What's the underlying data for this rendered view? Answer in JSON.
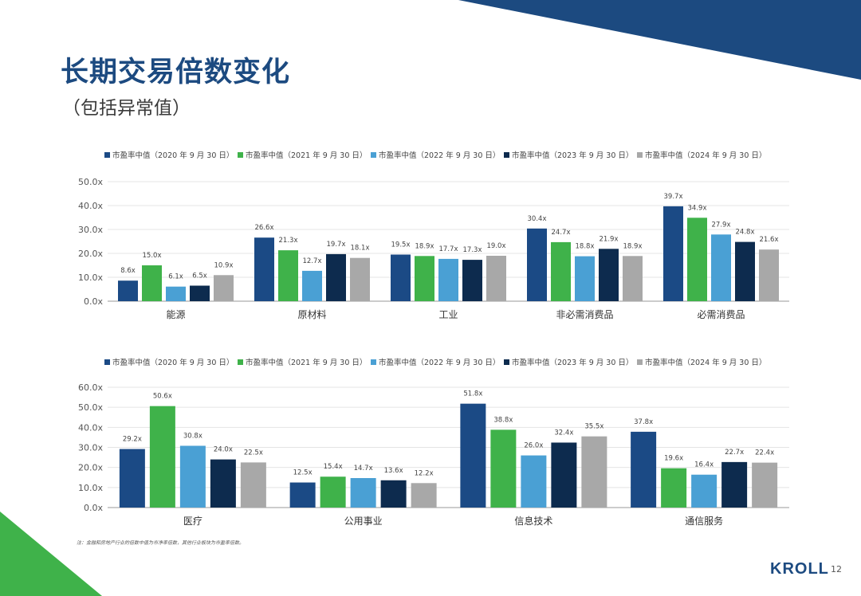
{
  "title": "长期交易倍数变化",
  "subtitle": "（包括异常值）",
  "footnote": "注：金融和房地产行业的倍数中值为市净率倍数，其他行业板块为市盈率倍数。",
  "logo": "KROLL",
  "page_number": "12",
  "colors": {
    "brand": "#1c4a80",
    "series": [
      "#1b4a85",
      "#3fb24a",
      "#4aa0d4",
      "#0d2b4e",
      "#a8a8a8"
    ]
  },
  "chart_data": [
    {
      "type": "bar",
      "title": "",
      "xlabel": "",
      "ylabel": "",
      "ylim": [
        0,
        50
      ],
      "yticks": [
        0,
        10,
        20,
        30,
        40,
        50
      ],
      "ytick_labels": [
        "0.0x",
        "10.0x",
        "20.0x",
        "30.0x",
        "40.0x",
        "50.0x"
      ],
      "legend_position": "top",
      "categories": [
        "能源",
        "原材料",
        "工业",
        "非必需消费品",
        "必需消费品"
      ],
      "series": [
        {
          "name": "市盈率中值（2020 年 9 月 30 日）",
          "values": [
            8.6,
            26.6,
            19.5,
            30.4,
            39.7
          ],
          "labels": [
            "8.6x",
            "26.6x",
            "19.5x",
            "30.4x",
            "39.7x"
          ]
        },
        {
          "name": "市盈率中值（2021 年 9 月 30 日）",
          "values": [
            15.0,
            21.3,
            18.9,
            24.7,
            34.9
          ],
          "labels": [
            "15.0x",
            "21.3x",
            "18.9x",
            "24.7x",
            "34.9x"
          ]
        },
        {
          "name": "市盈率中值（2022 年 9 月 30 日）",
          "values": [
            6.1,
            12.7,
            17.7,
            18.8,
            27.9
          ],
          "labels": [
            "6.1x",
            "12.7x",
            "17.7x",
            "18.8x",
            "27.9x"
          ]
        },
        {
          "name": "市盈率中值（2023 年 9 月 30 日）",
          "values": [
            6.5,
            19.7,
            17.3,
            21.9,
            24.8
          ],
          "labels": [
            "6.5x",
            "19.7x",
            "17.3x",
            "21.9x",
            "24.8x"
          ]
        },
        {
          "name": "市盈率中值（2024 年 9 月 30 日）",
          "values": [
            10.9,
            18.1,
            19.0,
            18.9,
            21.6
          ],
          "labels": [
            "10.9x",
            "18.1x",
            "19.0x",
            "18.9x",
            "21.6x"
          ]
        }
      ]
    },
    {
      "type": "bar",
      "title": "",
      "xlabel": "",
      "ylabel": "",
      "ylim": [
        0,
        60
      ],
      "yticks": [
        0,
        10,
        20,
        30,
        40,
        50,
        60
      ],
      "ytick_labels": [
        "0.0x",
        "10.0x",
        "20.0x",
        "30.0x",
        "40.0x",
        "50.0x",
        "60.0x"
      ],
      "legend_position": "top",
      "categories": [
        "医疗",
        "公用事业",
        "信息技术",
        "通信服务"
      ],
      "series": [
        {
          "name": "市盈率中值（2020 年 9 月 30 日）",
          "values": [
            29.2,
            12.5,
            51.8,
            37.8
          ],
          "labels": [
            "29.2x",
            "12.5x",
            "51.8x",
            "37.8x"
          ]
        },
        {
          "name": "市盈率中值（2021 年 9 月 30 日）",
          "values": [
            50.6,
            15.4,
            38.8,
            19.6
          ],
          "labels": [
            "50.6x",
            "15.4x",
            "38.8x",
            "19.6x"
          ]
        },
        {
          "name": "市盈率中值（2022 年 9 月 30 日）",
          "values": [
            30.8,
            14.7,
            26.0,
            16.4
          ],
          "labels": [
            "30.8x",
            "14.7x",
            "26.0x",
            "16.4x"
          ]
        },
        {
          "name": "市盈率中值（2023 年 9 月 30 日）",
          "values": [
            24.0,
            13.6,
            32.4,
            22.7
          ],
          "labels": [
            "24.0x",
            "13.6x",
            "32.4x",
            "22.7x"
          ]
        },
        {
          "name": "市盈率中值（2024 年 9 月 30 日）",
          "values": [
            22.5,
            12.2,
            35.5,
            22.4
          ],
          "labels": [
            "22.5x",
            "12.2x",
            "35.5x",
            "22.4x"
          ]
        }
      ]
    }
  ]
}
